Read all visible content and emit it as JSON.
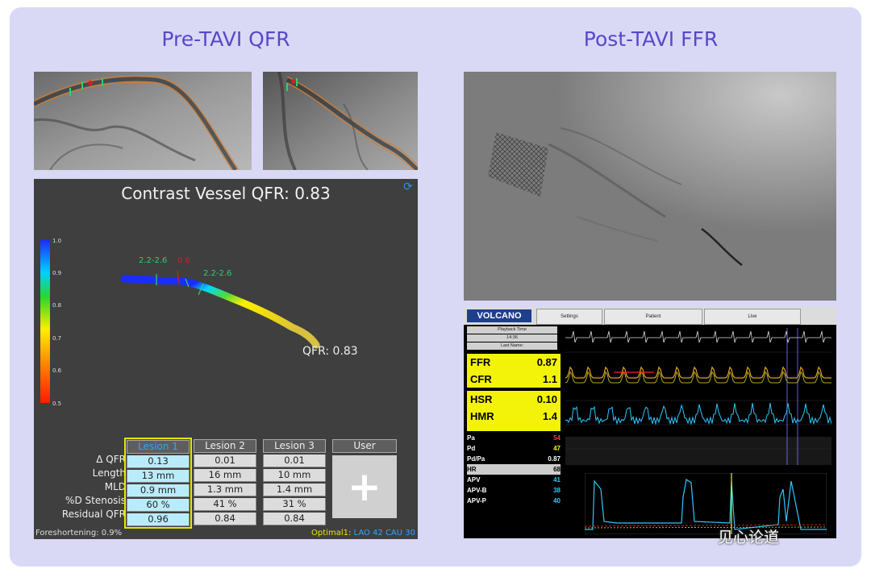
{
  "headings": {
    "left": "Pre-TAVI QFR",
    "right": "Post-TAVI FFR"
  },
  "qfr_panel": {
    "title": "Contrast Vessel QFR: 0.83",
    "colorbar_labels": [
      "1.0",
      "0.9",
      "0.8",
      "0.7",
      "0.6",
      "0.5"
    ],
    "segment_labels": {
      "left": "2.2-2.6",
      "mid": "0.6",
      "right": "2.2-2.6"
    },
    "end_label": "QFR: 0.83",
    "row_labels": [
      "Δ QFR",
      "Length",
      "MLD",
      "%D Stenosis",
      "Residual QFR"
    ],
    "lesions": [
      {
        "name": "Lesion 1",
        "values": [
          "0.13",
          "13 mm",
          "0.9 mm",
          "60 %",
          "0.96"
        ]
      },
      {
        "name": "Lesion 2",
        "values": [
          "0.01",
          "16 mm",
          "1.3 mm",
          "41 %",
          "0.84"
        ]
      },
      {
        "name": "Lesion 3",
        "values": [
          "0.01",
          "10 mm",
          "1.4 mm",
          "31 %",
          "0.84"
        ]
      }
    ],
    "user_label": "User",
    "add_icon": "plus-icon",
    "footer_left": "Foreshortening: 0.9%",
    "footer_right_prefix": "Optimal1:",
    "footer_right_lao": "LAO 42",
    "footer_right_cau": "CAU 30"
  },
  "volcano": {
    "logo": "VOLCANO",
    "tabs": [
      "Settings",
      "Patient",
      "Live"
    ],
    "info": [
      "Playback Time",
      "14:36",
      "Last Name:"
    ],
    "ffr_label": "FFR",
    "ffr_value": "0.87",
    "cfr_label": "CFR",
    "cfr_value": "1.1",
    "hsr_label": "HSR",
    "hsr_value": "0.10",
    "hmr_label": "HMR",
    "hmr_value": "1.4",
    "params": [
      {
        "label": "Pa",
        "value": "54",
        "color": "#ff3b3b"
      },
      {
        "label": "Pd",
        "value": "47",
        "color": "#f3f30a"
      },
      {
        "label": "Pd/Pa",
        "value": "0.87",
        "color": "#ffffff"
      },
      {
        "label": "HR",
        "value": "68",
        "color": "#ffffff"
      },
      {
        "label": "APV",
        "value": "41",
        "color": "#2ec8ff"
      },
      {
        "label": "APV-B",
        "value": "38",
        "color": "#2ec8ff"
      },
      {
        "label": "APV-P",
        "value": "40",
        "color": "#2ec8ff"
      }
    ]
  },
  "watermark": "见心论道"
}
